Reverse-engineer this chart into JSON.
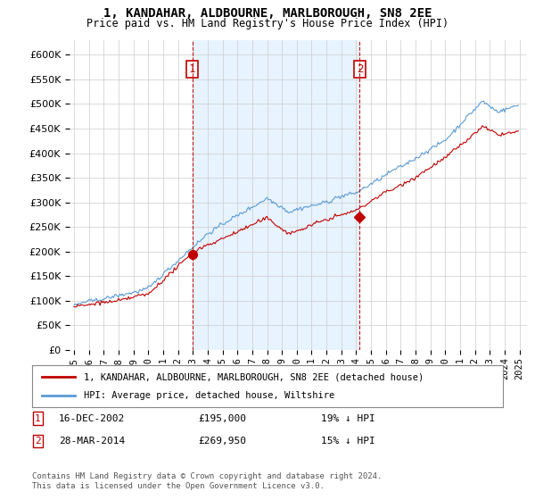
{
  "title": "1, KANDAHAR, ALDBOURNE, MARLBOROUGH, SN8 2EE",
  "subtitle": "Price paid vs. HM Land Registry's House Price Index (HPI)",
  "yticks": [
    0,
    50000,
    100000,
    150000,
    200000,
    250000,
    300000,
    350000,
    400000,
    450000,
    500000,
    550000,
    600000
  ],
  "hpi_color": "#5b9bd5",
  "price_color": "#c00000",
  "vline_color": "#c00000",
  "shade_color": "#ddeeff",
  "transaction1_date": "16-DEC-2002",
  "transaction1_price": "£195,000",
  "transaction1_hpi": "19% ↓ HPI",
  "transaction1_x": 2002.96,
  "transaction1_y": 195000,
  "transaction2_date": "28-MAR-2014",
  "transaction2_price": "£269,950",
  "transaction2_hpi": "15% ↓ HPI",
  "transaction2_x": 2014.24,
  "transaction2_y": 269950,
  "legend_line1": "1, KANDAHAR, ALDBOURNE, MARLBOROUGH, SN8 2EE (detached house)",
  "legend_line2": "HPI: Average price, detached house, Wiltshire",
  "footnote": "Contains HM Land Registry data © Crown copyright and database right 2024.\nThis data is licensed under the Open Government Licence v3.0.",
  "background_color": "#ffffff",
  "grid_color": "#cccccc",
  "xlim_left": 1994.7,
  "xlim_right": 2025.5,
  "ylim_top": 630000
}
